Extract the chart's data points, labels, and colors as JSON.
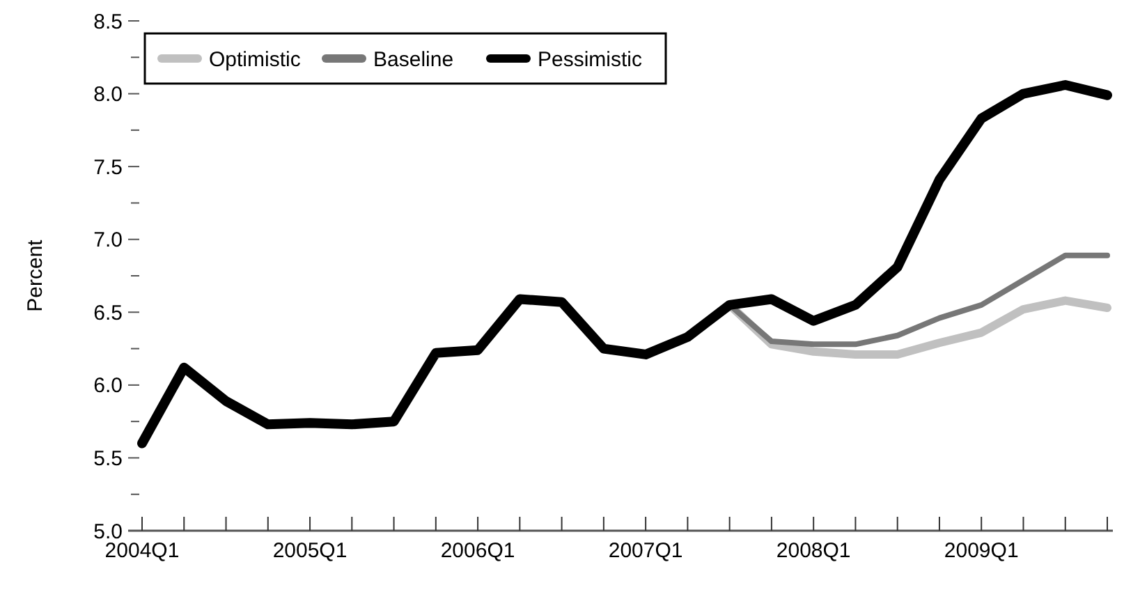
{
  "chart_data": {
    "type": "line",
    "ylabel": "Percent",
    "categories": [
      "2004Q1",
      null,
      null,
      null,
      "2005Q1",
      null,
      null,
      null,
      "2006Q1",
      null,
      null,
      null,
      "2007Q1",
      null,
      null,
      null,
      "2008Q1",
      null,
      null,
      null,
      "2009Q1",
      null,
      null,
      null
    ],
    "series": [
      {
        "name": "Optimistic",
        "color": "#c0c0c0",
        "values": [
          null,
          null,
          null,
          null,
          null,
          null,
          null,
          null,
          null,
          null,
          null,
          null,
          null,
          null,
          6.55,
          6.28,
          6.23,
          6.21,
          6.21,
          6.29,
          6.36,
          6.52,
          6.58,
          6.53
        ]
      },
      {
        "name": "Baseline",
        "color": "#777777",
        "values": [
          null,
          null,
          null,
          null,
          null,
          null,
          null,
          null,
          null,
          null,
          null,
          null,
          null,
          null,
          6.55,
          6.3,
          6.28,
          6.28,
          6.34,
          6.46,
          6.55,
          6.72,
          6.89,
          6.89
        ]
      },
      {
        "name": "Pessimistic",
        "color": "#000000",
        "values": [
          5.6,
          6.12,
          5.89,
          5.73,
          5.74,
          5.73,
          5.75,
          6.22,
          6.24,
          6.59,
          6.57,
          6.25,
          6.21,
          6.33,
          6.55,
          6.59,
          6.44,
          6.55,
          6.81,
          7.41,
          7.83,
          8.0,
          8.06,
          7.99
        ]
      }
    ],
    "ylim": [
      5.0,
      8.5
    ],
    "yticks": [
      {
        "value": 5,
        "label": "5.0"
      },
      {
        "value": 5.25,
        "label": null
      },
      5.5,
      {
        "value": 5.75,
        "label": null
      },
      {
        "value": 6,
        "label": "6.0"
      },
      {
        "value": 6.25,
        "label": null
      },
      6.5,
      {
        "value": 6.75,
        "label": null
      },
      {
        "value": 7,
        "label": "7.0"
      },
      {
        "value": 7.25,
        "label": null
      },
      7.5,
      {
        "value": 7.75,
        "label": null
      },
      {
        "value": 8,
        "label": "8.0"
      },
      {
        "value": 8.25,
        "label": null
      },
      8.5
    ],
    "grid": false,
    "legend": "top left",
    "marker": "none",
    "line_style": "solid"
  }
}
